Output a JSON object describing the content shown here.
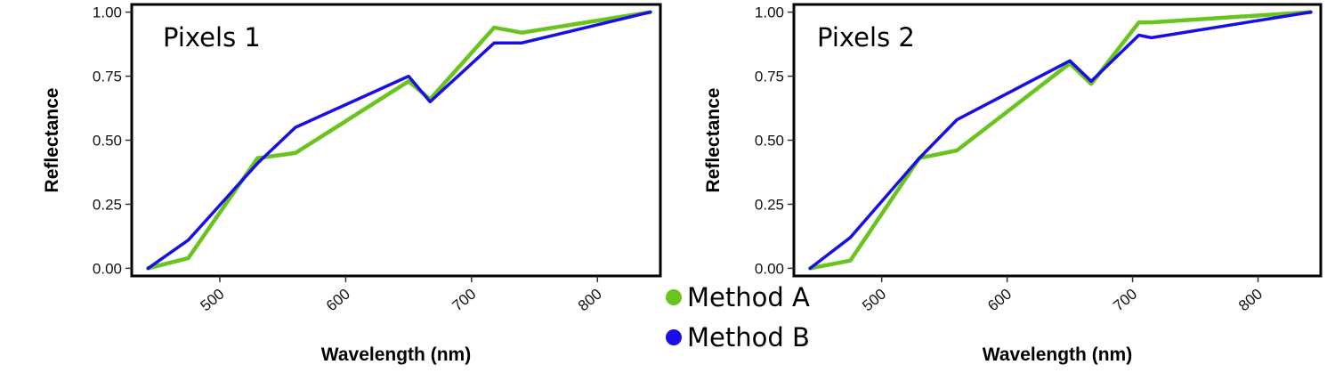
{
  "chart_data": [
    {
      "type": "line",
      "title": "Pixels 1",
      "xlabel": "Wavelength (nm)",
      "ylabel": "Reflectance",
      "xlim": [
        430,
        850
      ],
      "ylim": [
        -0.03,
        1.03
      ],
      "xticks": [
        "500",
        "600",
        "700",
        "800"
      ],
      "yticks": [
        "0.00",
        "0.25",
        "0.50",
        "0.75",
        "1.00"
      ],
      "series": [
        {
          "name": "Method A",
          "color": "#6ac41e",
          "x": [
            443,
            475,
            530,
            560,
            650,
            667,
            718,
            740,
            842
          ],
          "y": [
            0.0,
            0.04,
            0.43,
            0.45,
            0.73,
            0.66,
            0.94,
            0.92,
            1.0
          ]
        },
        {
          "name": "Method B",
          "color": "#1a0ee6",
          "x": [
            443,
            475,
            530,
            560,
            650,
            667,
            718,
            740,
            842
          ],
          "y": [
            0.0,
            0.11,
            0.41,
            0.55,
            0.75,
            0.65,
            0.88,
            0.88,
            1.0
          ]
        }
      ]
    },
    {
      "type": "line",
      "title": "Pixels 2",
      "xlabel": "Wavelength (nm)",
      "ylabel": "Reflectance",
      "xlim": [
        430,
        850
      ],
      "ylim": [
        -0.03,
        1.03
      ],
      "xticks": [
        "500",
        "600",
        "700",
        "800"
      ],
      "yticks": [
        "0.00",
        "0.25",
        "0.50",
        "0.75",
        "1.00"
      ],
      "series": [
        {
          "name": "Method A",
          "color": "#6ac41e",
          "x": [
            443,
            475,
            530,
            560,
            650,
            667,
            705,
            715,
            842
          ],
          "y": [
            0.0,
            0.03,
            0.43,
            0.46,
            0.8,
            0.72,
            0.96,
            0.96,
            1.0
          ]
        },
        {
          "name": "Method B",
          "color": "#1a0ee6",
          "x": [
            443,
            475,
            530,
            560,
            650,
            667,
            705,
            715,
            842
          ],
          "y": [
            0.0,
            0.12,
            0.43,
            0.58,
            0.81,
            0.73,
            0.91,
            0.9,
            1.0
          ]
        }
      ]
    }
  ],
  "legend": {
    "items": [
      {
        "label": "Method A",
        "color": "#6ac41e"
      },
      {
        "label": "Method B",
        "color": "#1a0ee6"
      }
    ]
  }
}
